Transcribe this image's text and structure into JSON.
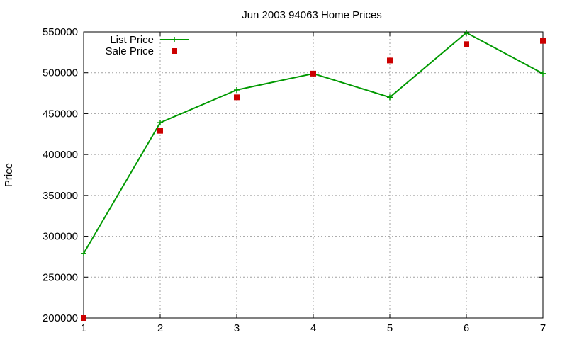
{
  "chart_data": {
    "type": "line",
    "title": "Jun 2003 94063 Home Prices",
    "xlabel": "",
    "ylabel": "Price",
    "x": [
      1,
      2,
      3,
      4,
      5,
      6,
      7
    ],
    "xlim": [
      1,
      7
    ],
    "ylim": [
      200000,
      550000
    ],
    "x_ticks": [
      "1",
      "2",
      "3",
      "4",
      "5",
      "6",
      "7"
    ],
    "y_ticks": [
      "200000",
      "250000",
      "300000",
      "350000",
      "400000",
      "450000",
      "500000",
      "550000"
    ],
    "grid": true,
    "legend_position": "top-left",
    "series": [
      {
        "name": "List Price",
        "style": "lines+points",
        "marker": "plus",
        "color": "#009900",
        "values": [
          279000,
          439000,
          479000,
          499000,
          470000,
          549000,
          499000
        ]
      },
      {
        "name": "Sale Price",
        "style": "points",
        "marker": "square",
        "color": "#cc0000",
        "values": [
          200000,
          429000,
          470000,
          499000,
          515000,
          535000,
          539000
        ]
      }
    ]
  }
}
